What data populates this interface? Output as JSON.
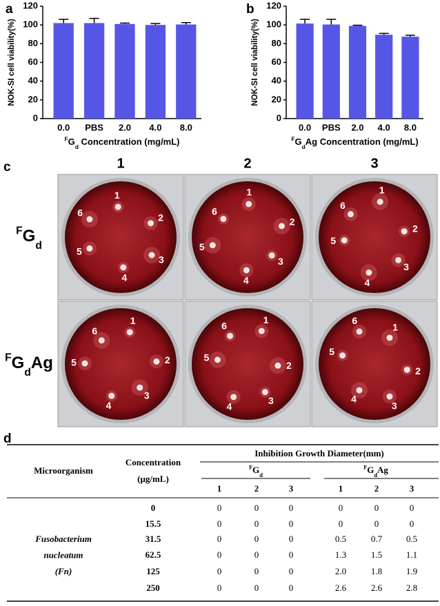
{
  "panel_labels": [
    "a",
    "b",
    "c",
    "d"
  ],
  "chart_data": [
    {
      "type": "bar",
      "ylabel": "NOK-SI cell  viability(%)",
      "xlabel": {
        "sup": "F",
        "base": "G",
        "sub": "d",
        "rest": " Concentration (mg/mL)"
      },
      "categories": [
        "0.0",
        "PBS",
        "2.0",
        "4.0",
        "8.0"
      ],
      "values": [
        102,
        102,
        101,
        100,
        100.5
      ],
      "errors": [
        4,
        5,
        1,
        1.5,
        2
      ],
      "color": "#5656e6",
      "ylim": [
        0,
        120
      ],
      "yticks": [
        0,
        20,
        40,
        60,
        80,
        100,
        120
      ]
    },
    {
      "type": "bar",
      "ylabel": "NOK-SI cell  viability(%)",
      "xlabel": {
        "sup": "F",
        "base": "G",
        "sub": "d",
        "rest": "Ag Concentration (mg/mL)"
      },
      "categories": [
        "0.0",
        "PBS",
        "2.0",
        "4.0",
        "8.0"
      ],
      "values": [
        101.5,
        100.5,
        99,
        89.5,
        87.5
      ],
      "errors": [
        4.5,
        5.5,
        0.7,
        1.5,
        1.5
      ],
      "color": "#5656e6",
      "ylim": [
        0,
        120
      ],
      "yticks": [
        0,
        20,
        40,
        60,
        80,
        100,
        120
      ]
    }
  ],
  "photos": {
    "columns": [
      "1",
      "2",
      "3"
    ],
    "rows": [
      {
        "sup": "F",
        "base": "G",
        "sub": "d"
      },
      {
        "sup": "F",
        "base": "G",
        "sub": "d",
        "rest": "Ag"
      }
    ],
    "well_labels": [
      "1",
      "2",
      "3",
      "4",
      "5",
      "6"
    ]
  },
  "table": {
    "group_header": "Inhibition Growth Diameter(mm)",
    "col_microorganism": "Microorganism",
    "col_concentration": [
      "Concentration",
      "(μg/mL)"
    ],
    "groups": [
      {
        "sup": "F",
        "base": "G",
        "sub": "d"
      },
      {
        "sup": "F",
        "base": "G",
        "sub": "d",
        "rest": "Ag"
      }
    ],
    "replicates": [
      "1",
      "2",
      "3",
      "1",
      "2",
      "3"
    ],
    "organism": [
      "Fusobacterium",
      "nucleatum",
      "(Fn)"
    ],
    "rows": [
      [
        "0",
        "0",
        "0",
        "0",
        "0",
        "0",
        "0"
      ],
      [
        "15.5",
        "0",
        "0",
        "0",
        "0",
        "0",
        "0"
      ],
      [
        "31.5",
        "0",
        "0",
        "0",
        "0.5",
        "0.7",
        "0.5"
      ],
      [
        "62.5",
        "0",
        "0",
        "0",
        "1.3",
        "1.5",
        "1.1"
      ],
      [
        "125",
        "0",
        "0",
        "0",
        "2.0",
        "1.8",
        "1.9"
      ],
      [
        "250",
        "0",
        "0",
        "0",
        "2.6",
        "2.6",
        "2.8"
      ]
    ]
  }
}
